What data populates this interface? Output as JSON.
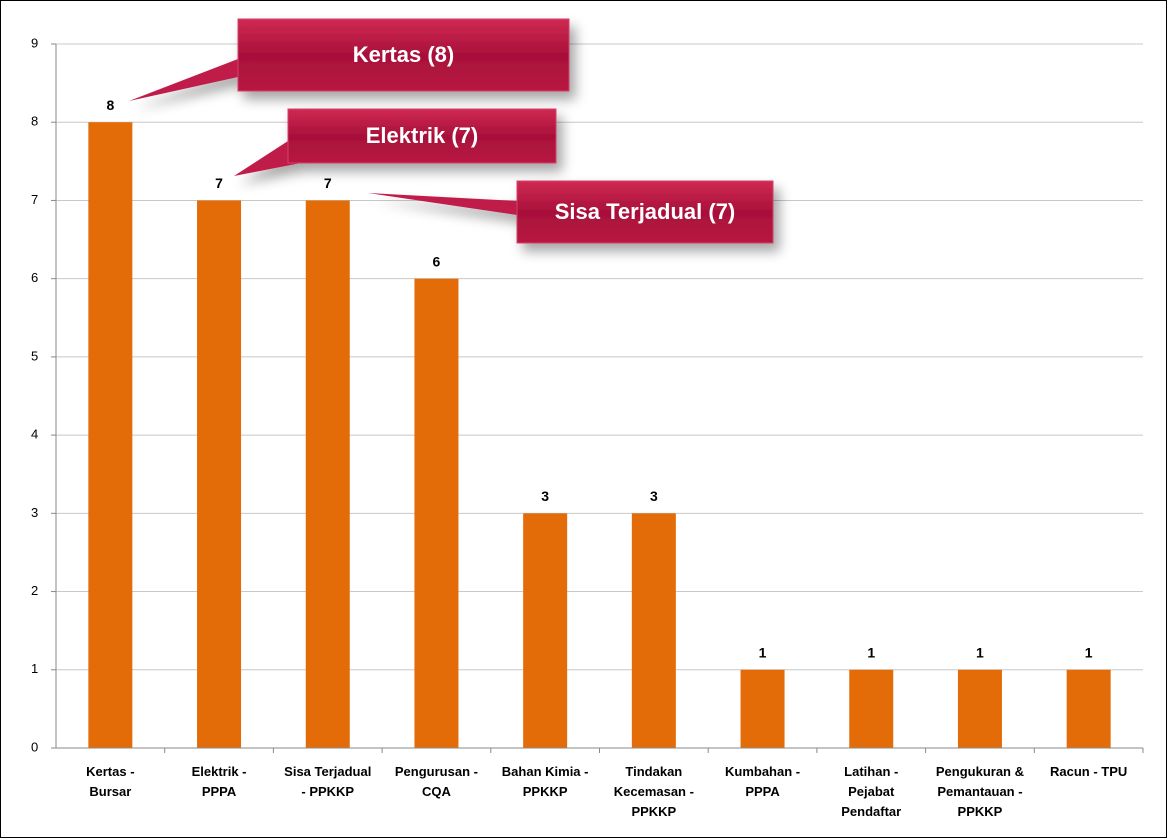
{
  "chart_data": {
    "type": "bar",
    "categories": [
      "Kertas -\nBursar",
      "Elektrik -\nPPPA",
      "Sisa Terjadual\n- PPKKP",
      "Pengurusan -\nCQA",
      "Bahan Kimia -\nPPKKP",
      "Tindakan\nKecemasan -\nPPKKP",
      "Kumbahan -\nPPPA",
      "Latihan -\nPejabat\nPendaftar",
      "Pengukuran &\nPemantauan -\nPPKKP",
      "Racun - TPU"
    ],
    "values": [
      8,
      7,
      7,
      6,
      3,
      3,
      1,
      1,
      1,
      1
    ],
    "color": "#e36c09",
    "ylim": [
      0,
      9
    ],
    "yticks": [
      0,
      1,
      2,
      3,
      4,
      5,
      6,
      7,
      8,
      9
    ],
    "grid": true,
    "annotations": [
      "Kertas (8)",
      "Elektrik (7)",
      "Sisa Terjadual (7)"
    ]
  }
}
